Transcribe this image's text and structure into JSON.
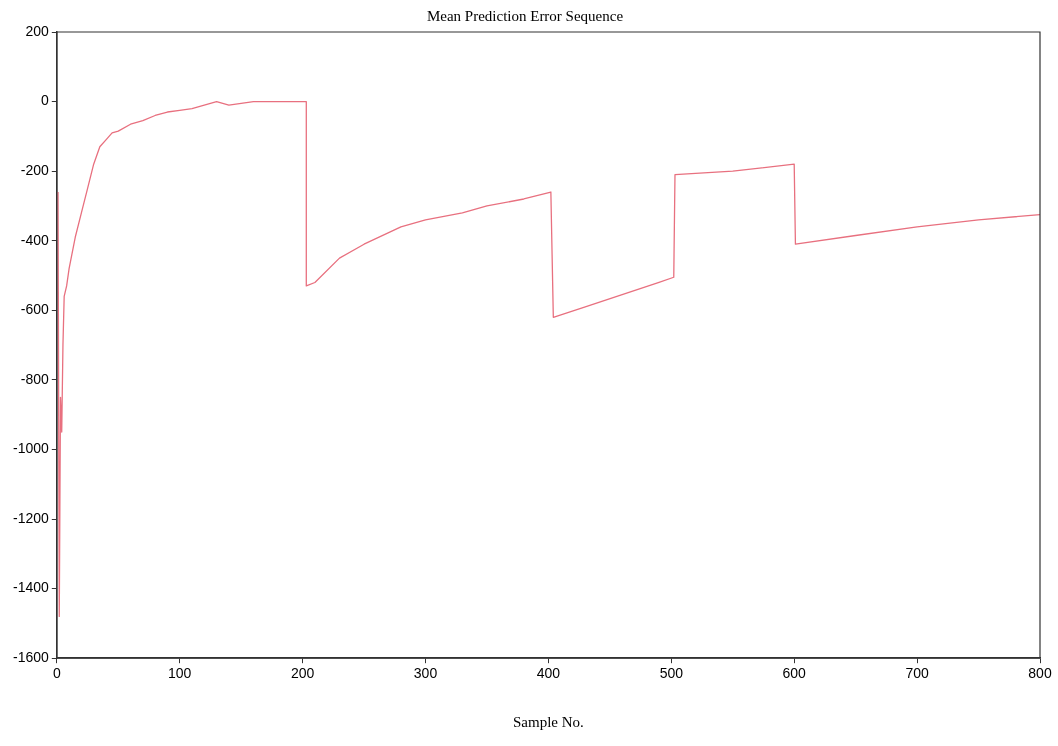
{
  "chart_data": {
    "type": "line",
    "title": "Mean Prediction Error Sequence",
    "xlabel": "Sample No.",
    "xlim": [
      0,
      800
    ],
    "xticks": [
      0,
      100,
      200,
      300,
      400,
      500,
      600,
      700,
      800
    ],
    "ylim": [
      -1600,
      200
    ],
    "yticks": [
      -1600,
      -1400,
      -1200,
      -1000,
      -800,
      -600,
      -400,
      -200,
      0,
      200
    ],
    "grid": false,
    "legend": false,
    "marker": "none",
    "line_style": "solid",
    "series": [
      {
        "color": "#e8707f",
        "x": [
          1,
          2,
          3,
          4,
          5,
          6,
          8,
          10,
          15,
          20,
          25,
          30,
          35,
          40,
          45,
          50,
          60,
          70,
          80,
          90,
          100,
          110,
          120,
          130,
          140,
          150,
          160,
          180,
          203,
          203,
          210,
          230,
          250,
          280,
          300,
          330,
          350,
          380,
          402,
          404,
          430,
          460,
          490,
          502,
          503,
          550,
          600,
          601,
          650,
          700,
          750,
          800
        ],
        "values": [
          -260,
          -1480,
          -850,
          -950,
          -700,
          -560,
          -530,
          -480,
          -390,
          -320,
          -250,
          -180,
          -130,
          -110,
          -90,
          -85,
          -65,
          -55,
          -40,
          -30,
          -25,
          -20,
          -10,
          0,
          -10,
          -5,
          0,
          0,
          0,
          -530,
          -520,
          -450,
          -410,
          -360,
          -340,
          -320,
          -300,
          -280,
          -260,
          -620,
          -590,
          -555,
          -520,
          -505,
          -210,
          -200,
          -180,
          -410,
          -385,
          -360,
          -340,
          -325
        ]
      }
    ]
  }
}
